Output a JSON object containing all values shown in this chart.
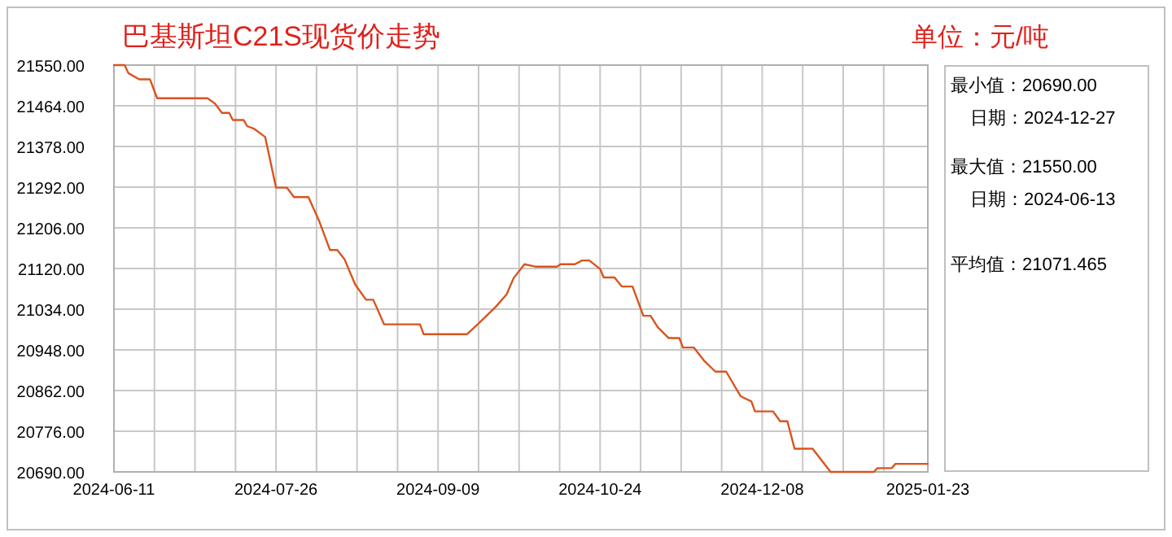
{
  "chart_data": [
    {
      "type": "line",
      "title": "巴基斯坦C21S现货价走势",
      "subtitle": "单位：元/吨",
      "grid": true,
      "marker": "none",
      "line_style": "solid",
      "xlim": [
        "2024-06-11",
        "2025-01-23"
      ],
      "xticks": [
        {
          "value": "2024-06-11",
          "label": "2024-06-11"
        },
        {
          "value": "2024-06-22T06:00",
          "label": null
        },
        {
          "value": "2024-07-03T12:00",
          "label": null
        },
        {
          "value": "2024-07-14T18:00",
          "label": null
        },
        {
          "value": "2024-07-26",
          "label": "2024-07-26"
        },
        {
          "value": "2024-08-06T06:00",
          "label": null
        },
        {
          "value": "2024-08-17T12:00",
          "label": null
        },
        {
          "value": "2024-08-28T18:00",
          "label": null
        },
        {
          "value": "2024-09-09",
          "label": "2024-09-09"
        },
        {
          "value": "2024-09-20T06:00",
          "label": null
        },
        {
          "value": "2024-10-01T12:00",
          "label": null
        },
        {
          "value": "2024-10-12T18:00",
          "label": null
        },
        {
          "value": "2024-10-24",
          "label": "2024-10-24"
        },
        {
          "value": "2024-11-04T06:00",
          "label": null
        },
        {
          "value": "2024-11-15T12:00",
          "label": null
        },
        {
          "value": "2024-11-26T18:00",
          "label": null
        },
        {
          "value": "2024-12-08",
          "label": "2024-12-08"
        },
        {
          "value": "2024-12-19T06:00",
          "label": null
        },
        {
          "value": "2024-12-30T12:00",
          "label": null
        },
        {
          "value": "2025-01-10T18:00",
          "label": null
        },
        {
          "value": "2025-01-23",
          "label": "2025-01-23"
        }
      ],
      "ylim": [
        20690,
        21550
      ],
      "yticks": [
        {
          "value": 20690,
          "label": "20690.00"
        },
        {
          "value": 20776,
          "label": "20776.00"
        },
        {
          "value": 20862,
          "label": "20862.00"
        },
        {
          "value": 20948,
          "label": "20948.00"
        },
        {
          "value": 21034,
          "label": "21034.00"
        },
        {
          "value": 21120,
          "label": "21120.00"
        },
        {
          "value": 21206,
          "label": "21206.00"
        },
        {
          "value": 21292,
          "label": "21292.00"
        },
        {
          "value": 21378,
          "label": "21378.00"
        },
        {
          "value": 21464,
          "label": "21464.00"
        },
        {
          "value": 21550,
          "label": "21550.00"
        }
      ],
      "x": [
        "2024-06-11",
        "2024-06-14",
        "2024-06-15",
        "2024-06-18",
        "2024-06-21",
        "2024-06-23",
        "2024-07-07",
        "2024-07-09",
        "2024-07-11",
        "2024-07-13",
        "2024-07-14",
        "2024-07-17",
        "2024-07-18",
        "2024-07-20",
        "2024-07-23",
        "2024-07-26",
        "2024-07-29",
        "2024-07-31",
        "2024-08-04",
        "2024-08-07",
        "2024-08-10",
        "2024-08-12",
        "2024-08-14",
        "2024-08-17",
        "2024-08-20",
        "2024-08-22",
        "2024-08-25",
        "2024-09-04",
        "2024-09-05",
        "2024-09-17",
        "2024-09-20",
        "2024-09-25",
        "2024-09-28",
        "2024-09-30",
        "2024-10-03",
        "2024-10-06",
        "2024-10-12",
        "2024-10-13",
        "2024-10-17",
        "2024-10-19",
        "2024-10-21",
        "2024-10-24",
        "2024-10-25",
        "2024-10-28",
        "2024-10-30",
        "2024-11-02",
        "2024-11-05",
        "2024-11-07",
        "2024-11-09",
        "2024-11-12",
        "2024-11-15",
        "2024-11-16",
        "2024-11-19",
        "2024-11-22",
        "2024-11-25",
        "2024-11-28",
        "2024-12-02",
        "2024-12-05",
        "2024-12-06",
        "2024-12-11",
        "2024-12-13",
        "2024-12-15",
        "2024-12-17",
        "2024-12-22",
        "2024-12-27",
        "2025-01-08",
        "2025-01-09",
        "2025-01-13",
        "2025-01-14",
        "2025-01-23"
      ],
      "series": [
        {
          "color": "#d9541e",
          "values": [
            21550,
            21550,
            21533,
            21520,
            21520,
            21480,
            21480,
            21469,
            21449,
            21449,
            21434,
            21434,
            21421,
            21415,
            21398,
            21291,
            21291,
            21271,
            21271,
            21220,
            21159,
            21159,
            21140,
            21086,
            21054,
            21054,
            21002,
            21002,
            20981,
            20981,
            21002,
            21039,
            21065,
            21100,
            21129,
            21124,
            21124,
            21129,
            21129,
            21137,
            21137,
            21119,
            21101,
            21101,
            21082,
            21082,
            21020,
            21020,
            20996,
            20973,
            20973,
            20953,
            20953,
            20924,
            20902,
            20902,
            20850,
            20839,
            20818,
            20818,
            20797,
            20797,
            20739,
            20739,
            20690,
            20690,
            20698,
            20698,
            20707,
            20707
          ]
        }
      ]
    },
    {
      "type": "other",
      "annotations": [
        "最小值：20690.00",
        "日期：2024-12-27",
        "最大值：21550.00",
        "日期：2024-06-13",
        "平均值：21071.465"
      ]
    }
  ]
}
